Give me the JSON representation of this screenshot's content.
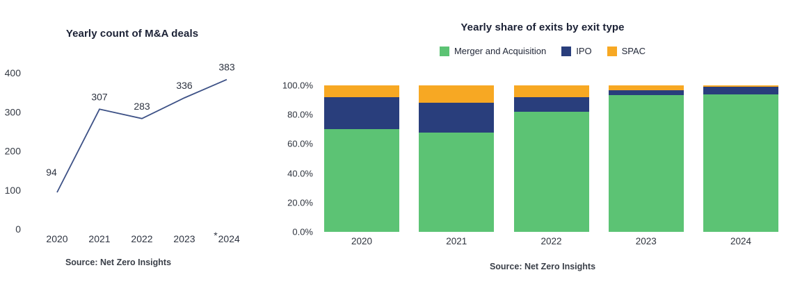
{
  "background": "#ffffff",
  "chart_data": [
    {
      "type": "line",
      "title": "Yearly count of M&A deals",
      "x": [
        "2020",
        "2021",
        "2022",
        "2023",
        "*2024"
      ],
      "values": [
        94,
        307,
        283,
        336,
        383
      ],
      "value_labels": [
        "94",
        "307",
        "283",
        "336",
        "383"
      ],
      "ylim": [
        0,
        400
      ],
      "yticks": [
        400,
        300,
        200,
        100,
        0
      ],
      "line_color": "#3d5186",
      "grid": "off",
      "source": "Source: Net Zero Insights"
    },
    {
      "type": "bar",
      "stacked": true,
      "title": "Yearly share of exits by exit type",
      "categories": [
        "2020",
        "2021",
        "2022",
        "2023",
        "2024"
      ],
      "series": [
        {
          "name": "Merger and Acquisition",
          "color": "#5cc374",
          "values": [
            70,
            68,
            82,
            93.5,
            94
          ]
        },
        {
          "name": "IPO",
          "color": "#293e7c",
          "values": [
            22,
            20,
            10,
            3,
            5
          ]
        },
        {
          "name": "SPAC",
          "color": "#f7a823",
          "values": [
            8,
            12,
            8,
            3.5,
            1
          ]
        }
      ],
      "ylim": [
        0,
        100
      ],
      "ytick_values": [
        100,
        80,
        60,
        40,
        20,
        0
      ],
      "ytick_labels": [
        "100.0%",
        "80.0%",
        "60.0%",
        "40.0%",
        "20.0%",
        "0.0%"
      ],
      "legend_position": "top",
      "grid": "off",
      "source": "Source: Net Zero Insights"
    }
  ]
}
